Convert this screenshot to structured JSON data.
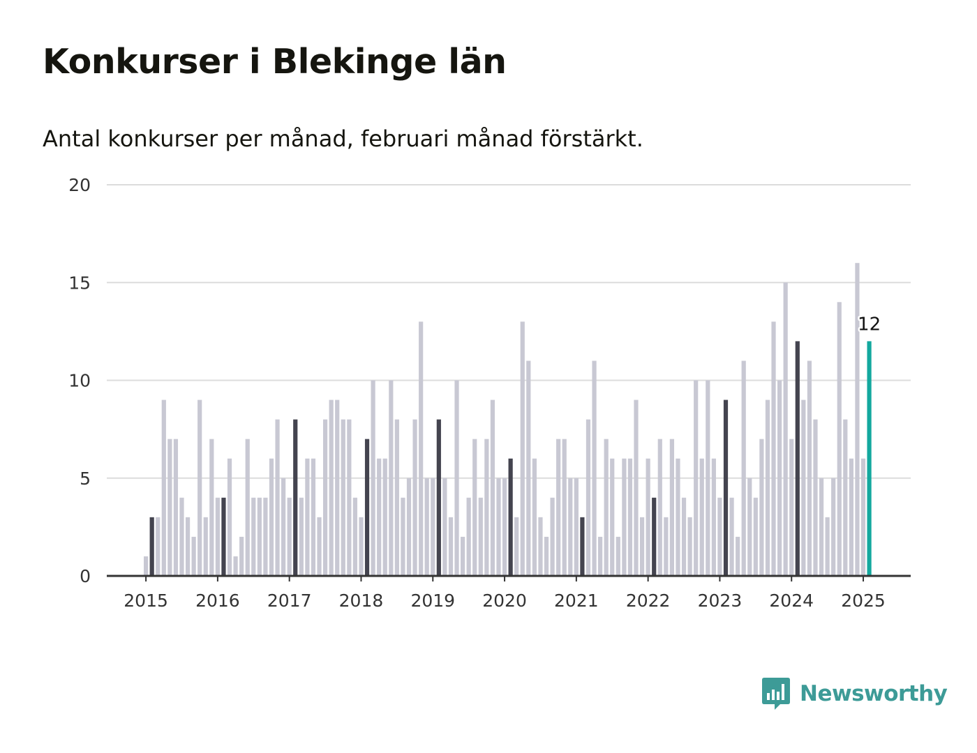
{
  "title": "Konkurser i Blekinge län",
  "subtitle": "Antal konkurser per månad, februari månad förstärkt.",
  "brand": {
    "name": "Newsworthy",
    "icon": "newsworthy-logo-icon",
    "color": "#3d9b97"
  },
  "colors": {
    "bar_default": "#c8c8d3",
    "bar_february": "#44444f",
    "bar_latest": "#13a89e",
    "grid": "#dcdcdc",
    "axis": "#333333"
  },
  "chart_data": {
    "type": "bar",
    "x_start": "2015-01",
    "frequency": "monthly",
    "values": [
      1,
      3,
      3,
      9,
      7,
      7,
      4,
      3,
      2,
      9,
      3,
      7,
      4,
      4,
      6,
      1,
      2,
      7,
      4,
      4,
      4,
      6,
      8,
      5,
      4,
      8,
      4,
      6,
      6,
      3,
      8,
      9,
      9,
      8,
      8,
      4,
      3,
      7,
      10,
      6,
      6,
      10,
      8,
      4,
      5,
      8,
      13,
      5,
      5,
      8,
      5,
      3,
      10,
      2,
      4,
      7,
      4,
      7,
      9,
      5,
      5,
      6,
      3,
      13,
      11,
      6,
      3,
      2,
      4,
      7,
      7,
      5,
      5,
      3,
      8,
      11,
      2,
      7,
      6,
      2,
      6,
      6,
      9,
      3,
      6,
      4,
      7,
      3,
      7,
      6,
      4,
      3,
      10,
      6,
      10,
      6,
      4,
      9,
      4,
      2,
      11,
      5,
      4,
      7,
      9,
      13,
      10,
      15,
      7,
      12,
      9,
      11,
      8,
      5,
      3,
      5,
      14,
      8,
      6,
      16,
      6,
      12
    ],
    "highlight": "February",
    "latest_label": "12",
    "xtick_labels": [
      "2015",
      "2016",
      "2017",
      "2018",
      "2019",
      "2020",
      "2021",
      "2022",
      "2023",
      "2024",
      "2025"
    ],
    "yticks": [
      0,
      5,
      10,
      15,
      20
    ],
    "ylim": [
      0,
      20
    ],
    "grid": true,
    "xlabel": "",
    "ylabel": ""
  }
}
